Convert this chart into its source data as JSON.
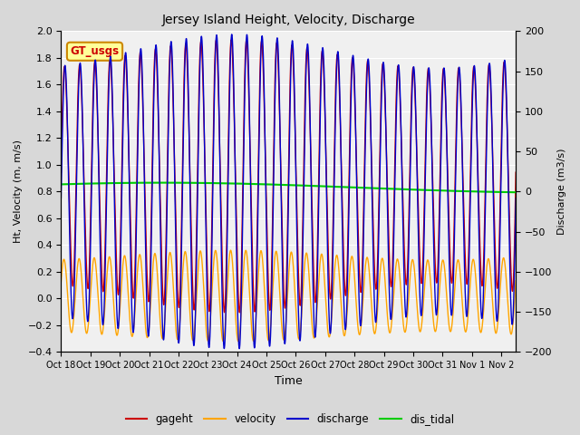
{
  "title": "Jersey Island Height, Velocity, Discharge",
  "xlabel": "Time",
  "ylabel_left": "Ht, Velocity (m, m/s)",
  "ylabel_right": "Discharge (m3/s)",
  "ylim_left": [
    -0.4,
    2.0
  ],
  "ylim_right": [
    -200,
    200
  ],
  "fig_bg_color": "#d8d8d8",
  "plot_bg_color": "#f0f0f0",
  "legend_labels": [
    "gageht",
    "velocity",
    "discharge",
    "dis_tidal"
  ],
  "legend_colors": [
    "#cc0000",
    "#ffa500",
    "#0000cc",
    "#00cc00"
  ],
  "gt_usgs_box_color": "#ffff99",
  "gt_usgs_border_color": "#cc8800",
  "gt_usgs_text_color": "#cc0000",
  "tick_dates": [
    "Oct 18",
    "Oct 19",
    "Oct 20",
    "Oct 21",
    "Oct 22",
    "Oct 23",
    "Oct 24",
    "Oct 25",
    "Oct 26",
    "Oct 27",
    "Oct 28",
    "Oct 29",
    "Oct 30",
    "Oct 31",
    "Nov 1",
    "Nov 2"
  ],
  "n_days": 15.5,
  "tidal_period_hours": 12.4,
  "gageht_mean": 0.93,
  "gageht_amp": 0.9,
  "velocity_mean": 0.0,
  "velocity_amp": 0.32,
  "discharge_amp": 175,
  "dis_tidal_mean": 0.82,
  "dis_tidal_long_amp": 0.04,
  "dis_tidal_long_period_days": 14.0
}
